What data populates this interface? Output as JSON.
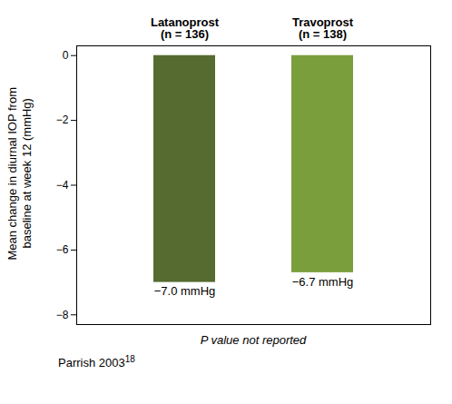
{
  "chart_data": {
    "type": "bar",
    "categories": [
      "Latanoprost\n(n = 136)",
      "Travoprost\n(n = 138)"
    ],
    "values": [
      -7.0,
      -6.7
    ],
    "value_labels": [
      "−7.0 mmHg",
      "−6.7 mmHg"
    ],
    "data_labels": true,
    "colors": [
      "#556B2F",
      "#7B9E3C"
    ],
    "ylabel": "Mean change in diurnal IOP from\nbaseline at week 12 (mmHg)",
    "ylim": [
      -8.3,
      0.3
    ],
    "yticks": [
      0,
      -2,
      -4,
      -6,
      -8
    ],
    "annotations": [
      "P value not reported"
    ],
    "footnote": {
      "text": "Parrish 2003",
      "superscript": "18"
    }
  }
}
